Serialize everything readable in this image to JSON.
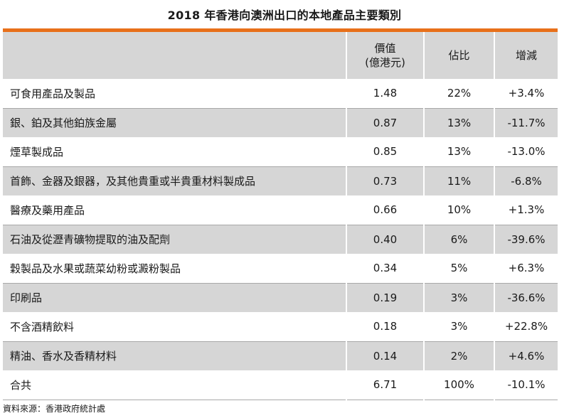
{
  "title": "2018 年香港向澳洲出口的本地產品主要類別",
  "table": {
    "headers": {
      "col1": "",
      "value_line1": "價值",
      "value_line2": "(億港元)",
      "share": "佔比",
      "change": "增減"
    },
    "rows": [
      {
        "name": "可食用產品及製品",
        "value": "1.48",
        "share": "22%",
        "change": "+3.4%"
      },
      {
        "name": "銀、鉑及其他鉑族金屬",
        "value": "0.87",
        "share": "13%",
        "change": "-11.7%"
      },
      {
        "name": "煙草製成品",
        "value": "0.85",
        "share": "13%",
        "change": "-13.0%"
      },
      {
        "name": "首飾、金器及銀器，及其他貴重或半貴重材料製成品",
        "value": "0.73",
        "share": "11%",
        "change": "-6.8%"
      },
      {
        "name": "醫療及藥用產品",
        "value": "0.66",
        "share": "10%",
        "change": "+1.3%"
      },
      {
        "name": "石油及從瀝青礦物提取的油及配劑",
        "value": "0.40",
        "share": "6%",
        "change": "-39.6%"
      },
      {
        "name": "穀製品及水果或蔬菜幼粉或澱粉製品",
        "value": "0.34",
        "share": "5%",
        "change": "+6.3%"
      },
      {
        "name": "印刷品",
        "value": "0.19",
        "share": "3%",
        "change": "-36.6%"
      },
      {
        "name": "不含酒精飲料",
        "value": "0.18",
        "share": "3%",
        "change": "+22.8%"
      },
      {
        "name": "精油、香水及香精材料",
        "value": "0.14",
        "share": "2%",
        "change": "+4.6%"
      },
      {
        "name": "合共",
        "value": "6.71",
        "share": "100%",
        "change": "-10.1%"
      }
    ]
  },
  "source": "資料來源：香港政府統計處",
  "colors": {
    "accent": "#e8701a",
    "shade": "#d6d6d6"
  }
}
